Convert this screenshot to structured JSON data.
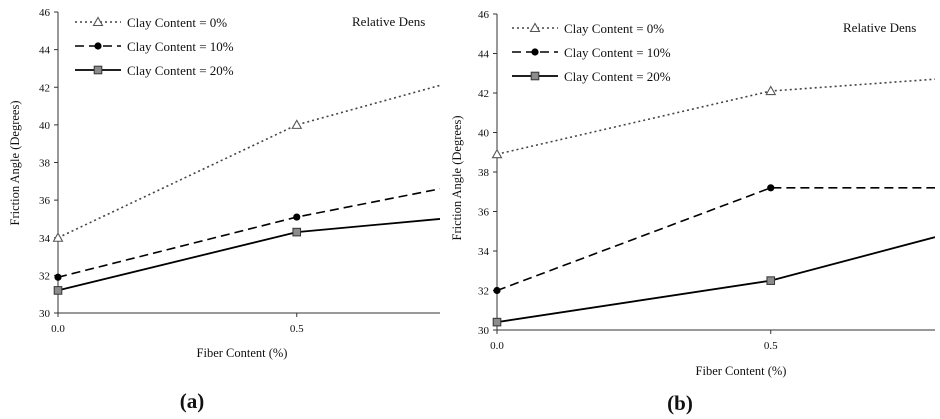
{
  "chart_data": [
    {
      "type": "line",
      "panel_label": "(a)",
      "annotation": "Relative Dens",
      "xlabel": "Fiber Content (%)",
      "ylabel": "Friction Angle (Degrees)",
      "x_ticks": [
        "0.0",
        "0.5"
      ],
      "y_ticks": [
        "30",
        "32",
        "34",
        "36",
        "38",
        "40",
        "42",
        "44",
        "46"
      ],
      "xlim": [
        0,
        0.8
      ],
      "ylim": [
        30,
        46
      ],
      "legend_position": "top-left",
      "series": [
        {
          "name": "Clay Content = 0%",
          "style": "dotted",
          "marker": "triangle-open",
          "color": "#444444",
          "x": [
            0,
            0.5,
            0.8
          ],
          "y": [
            34.0,
            40.0,
            42.1
          ]
        },
        {
          "name": "Clay Content = 10%",
          "style": "dashed",
          "marker": "circle-filled",
          "color": "#000000",
          "x": [
            0,
            0.5,
            0.8
          ],
          "y": [
            31.9,
            35.1,
            36.6
          ]
        },
        {
          "name": "Clay Content = 20%",
          "style": "solid",
          "marker": "square-gray",
          "color": "#000000",
          "x": [
            0,
            0.5,
            0.8
          ],
          "y": [
            31.2,
            34.3,
            35.0
          ]
        }
      ]
    },
    {
      "type": "line",
      "panel_label": "(b)",
      "annotation": "Relative Dens",
      "xlabel": "Fiber Content (%)",
      "ylabel": "Friction Angle (Degrees)",
      "x_ticks": [
        "0.0",
        "0.5"
      ],
      "y_ticks": [
        "30",
        "32",
        "34",
        "36",
        "38",
        "40",
        "42",
        "44",
        "46"
      ],
      "xlim": [
        0,
        0.8
      ],
      "ylim": [
        30,
        46
      ],
      "legend_position": "top-left",
      "series": [
        {
          "name": "Clay Content = 0%",
          "style": "dotted",
          "marker": "triangle-open",
          "color": "#444444",
          "x": [
            0,
            0.5,
            0.8
          ],
          "y": [
            38.9,
            42.1,
            42.7
          ]
        },
        {
          "name": "Clay Content = 10%",
          "style": "dashed",
          "marker": "circle-filled",
          "color": "#000000",
          "x": [
            0,
            0.5,
            0.8
          ],
          "y": [
            32.0,
            37.2,
            37.2
          ]
        },
        {
          "name": "Clay Content = 20%",
          "style": "solid",
          "marker": "square-gray",
          "color": "#000000",
          "x": [
            0,
            0.5,
            0.8
          ],
          "y": [
            30.4,
            32.5,
            34.7
          ]
        }
      ]
    }
  ]
}
